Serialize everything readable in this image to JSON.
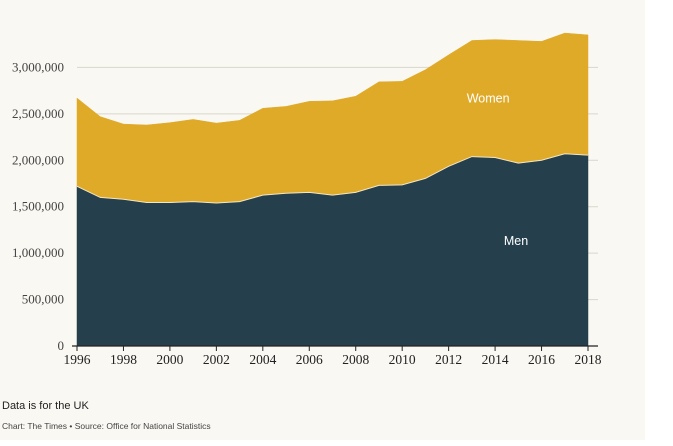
{
  "chart_data": {
    "type": "area",
    "stacked": true,
    "x": [
      1996,
      1997,
      1998,
      1999,
      2000,
      2001,
      2002,
      2003,
      2004,
      2005,
      2006,
      2007,
      2008,
      2009,
      2010,
      2011,
      2012,
      2013,
      2014,
      2015,
      2016,
      2017,
      2018
    ],
    "series": [
      {
        "name": "Men",
        "color": "#253f4d",
        "values": [
          1720000,
          1600000,
          1580000,
          1545000,
          1545000,
          1555000,
          1540000,
          1555000,
          1625000,
          1645000,
          1655000,
          1625000,
          1655000,
          1730000,
          1735000,
          1805000,
          1935000,
          2040000,
          2030000,
          1970000,
          2000000,
          2070000,
          2055000
        ]
      },
      {
        "name": "Women",
        "color": "#e0aa29",
        "values": [
          950000,
          870000,
          810000,
          835000,
          860000,
          885000,
          860000,
          875000,
          935000,
          935000,
          980000,
          1015000,
          1035000,
          1115000,
          1115000,
          1170000,
          1200000,
          1250000,
          1270000,
          1320000,
          1280000,
          1300000,
          1295000
        ]
      }
    ],
    "ylim": [
      0,
      3500000
    ],
    "yticks": [
      0,
      500000,
      1000000,
      1500000,
      2000000,
      2500000,
      3000000
    ],
    "ytick_labels": [
      "0",
      "500,000",
      "1,000,000",
      "1,500,000",
      "2,000,000",
      "2,500,000",
      "3,000,000"
    ],
    "xticks": [
      1996,
      1998,
      2000,
      2002,
      2004,
      2006,
      2008,
      2010,
      2012,
      2014,
      2016,
      2018
    ],
    "grid": true,
    "legend": "inline",
    "label_positions": {
      "Women": {
        "x": 2013.7,
        "y": 2620000
      },
      "Men": {
        "x": 2014.9,
        "y": 1090000
      }
    }
  },
  "note": "Data is for the UK",
  "source": "Chart: The Times • Source: Office for National Statistics"
}
